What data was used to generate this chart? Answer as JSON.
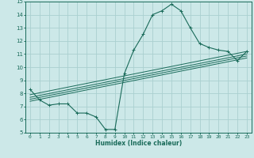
{
  "xlabel": "Humidex (Indice chaleur)",
  "bg_color": "#cce8e8",
  "grid_color": "#aad0d0",
  "line_color": "#1a6b5a",
  "xlim": [
    -0.5,
    23.5
  ],
  "ylim": [
    5,
    15
  ],
  "xticks": [
    0,
    1,
    2,
    3,
    4,
    5,
    6,
    7,
    8,
    9,
    10,
    11,
    12,
    13,
    14,
    15,
    16,
    17,
    18,
    19,
    20,
    21,
    22,
    23
  ],
  "yticks": [
    5,
    6,
    7,
    8,
    9,
    10,
    11,
    12,
    13,
    14,
    15
  ],
  "main_series_x": [
    0,
    1,
    2,
    3,
    4,
    5,
    6,
    7,
    8,
    9,
    10,
    11,
    12,
    13,
    14,
    15,
    16,
    17,
    18,
    19,
    20,
    21,
    22,
    23
  ],
  "main_series_y": [
    8.3,
    7.5,
    7.1,
    7.2,
    7.2,
    6.5,
    6.5,
    6.2,
    5.25,
    5.25,
    9.5,
    11.3,
    12.5,
    14.0,
    14.3,
    14.8,
    14.3,
    13.0,
    11.8,
    11.5,
    11.3,
    11.2,
    10.5,
    11.2
  ],
  "trend_lines": [
    {
      "x": [
        0,
        23
      ],
      "y": [
        7.9,
        11.2
      ]
    },
    {
      "x": [
        0,
        23
      ],
      "y": [
        7.7,
        11.0
      ]
    },
    {
      "x": [
        0,
        23
      ],
      "y": [
        7.55,
        10.85
      ]
    },
    {
      "x": [
        0,
        23
      ],
      "y": [
        7.4,
        10.7
      ]
    }
  ]
}
